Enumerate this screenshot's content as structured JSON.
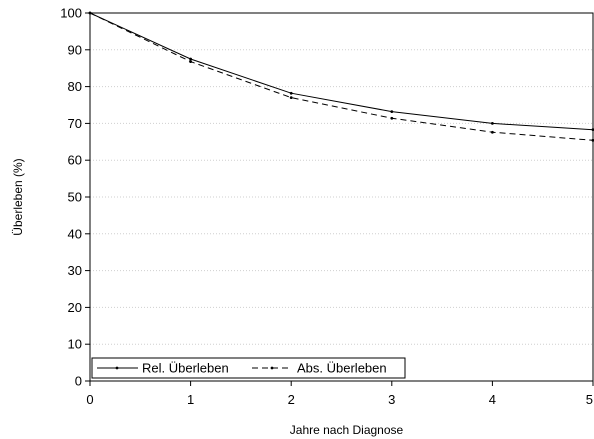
{
  "chart_data": {
    "type": "line",
    "xlabel": "Jahre nach Diagnose",
    "ylabel": "Überleben (%)",
    "xlim": [
      0,
      5
    ],
    "ylim": [
      0,
      100
    ],
    "xticks": [
      "0",
      "1",
      "2",
      "3",
      "4",
      "5"
    ],
    "yticks": [
      "0",
      "10",
      "20",
      "30",
      "40",
      "50",
      "60",
      "70",
      "80",
      "90",
      "100"
    ],
    "grid": "horizontal dotted",
    "legend_position": "bottom-left",
    "x": [
      0,
      1,
      2,
      3,
      4,
      5
    ],
    "series": [
      {
        "name": "Rel. Überleben",
        "style": "solid",
        "values": [
          100,
          87.5,
          78.2,
          73.2,
          70.0,
          68.3
        ]
      },
      {
        "name": "Abs. Überleben",
        "style": "dashed",
        "values": [
          100,
          86.8,
          77.0,
          71.4,
          67.6,
          65.4
        ]
      }
    ],
    "colors": {
      "line": "#000000",
      "grid": "#cfcfcf"
    }
  }
}
